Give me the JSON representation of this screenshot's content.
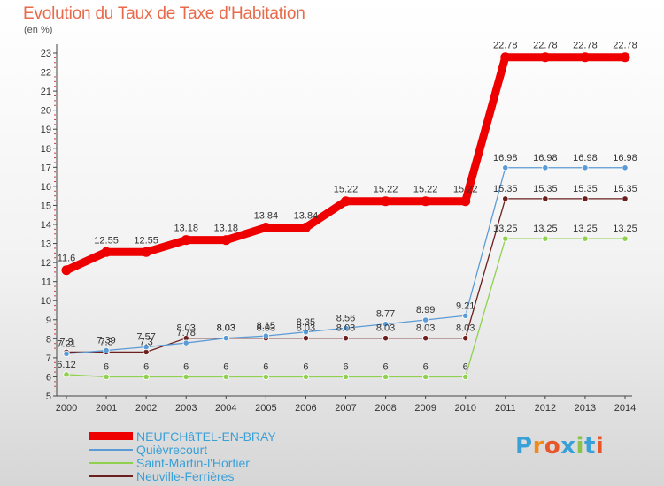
{
  "title": "Evolution du Taux de Taxe d'Habitation",
  "unit": "(en %)",
  "logo": {
    "text": "Proxiti",
    "letter_colors": [
      "#3aa0d8",
      "#f08a1c",
      "#e8572a",
      "#3aa0d8",
      "#8bc34a",
      "#3aa0d8",
      "#e8572a"
    ]
  },
  "chart_data": {
    "type": "line",
    "x": [
      2000,
      2001,
      2002,
      2003,
      2004,
      2005,
      2006,
      2007,
      2008,
      2009,
      2010,
      2011,
      2012,
      2013,
      2014
    ],
    "ylim": [
      5,
      23
    ],
    "yticks": [
      5,
      6,
      7,
      8,
      9,
      10,
      11,
      12,
      13,
      14,
      15,
      16,
      17,
      18,
      19,
      20,
      21,
      22,
      23
    ],
    "grid": false,
    "legend_position": "bottom-left",
    "series": [
      {
        "name": "NEUFCHâTEL-EN-BRAY",
        "color": "#ee0000",
        "values": [
          11.6,
          12.55,
          12.55,
          13.18,
          13.18,
          13.84,
          13.84,
          15.22,
          15.22,
          15.22,
          15.22,
          22.78,
          22.78,
          22.78,
          22.78
        ],
        "labels": [
          "11.6",
          "12.55",
          "12.55",
          "13.18",
          "13.18",
          "13.84",
          "13.84",
          "15.22",
          "15.22",
          "15.22",
          "15.22",
          "22.78",
          "22.78",
          "22.78",
          "22.78"
        ]
      },
      {
        "name": "Quièvrecourt",
        "color": "#5b9bd5",
        "values": [
          7.21,
          7.39,
          7.57,
          7.78,
          8.03,
          8.15,
          8.35,
          8.56,
          8.77,
          8.99,
          9.21,
          16.98,
          16.98,
          16.98,
          16.98
        ],
        "labels": [
          "7.21",
          "7.39",
          "7.57",
          "7.78",
          "8.03",
          "8.15",
          "8.35",
          "8.56",
          "8.77",
          "8.99",
          "9.21",
          "16.98",
          "16.98",
          "16.98",
          "16.98"
        ]
      },
      {
        "name": "Saint-Martin-l'Hortier",
        "color": "#8fd14f",
        "values": [
          6.12,
          6,
          6,
          6,
          6,
          6,
          6,
          6,
          6,
          6,
          6,
          13.25,
          13.25,
          13.25,
          13.25
        ],
        "labels": [
          "6.12",
          "6",
          "6",
          "6",
          "6",
          "6",
          "6",
          "6",
          "6",
          "6",
          "6",
          "13.25",
          "13.25",
          "13.25",
          "13.25"
        ]
      },
      {
        "name": "Neuville-Ferrières",
        "color": "#6b1f1f",
        "values": [
          7.3,
          7.3,
          7.3,
          8.03,
          8.03,
          8.03,
          8.03,
          8.03,
          8.03,
          8.03,
          8.03,
          15.35,
          15.35,
          15.35,
          15.35
        ],
        "labels": [
          "7.3",
          "7.3",
          "7.3",
          "8.03",
          "8.03",
          "8.03",
          "8.03",
          "8.03",
          "8.03",
          "8.03",
          "8.03",
          "15.35",
          "15.35",
          "15.35",
          "15.35"
        ]
      }
    ]
  }
}
